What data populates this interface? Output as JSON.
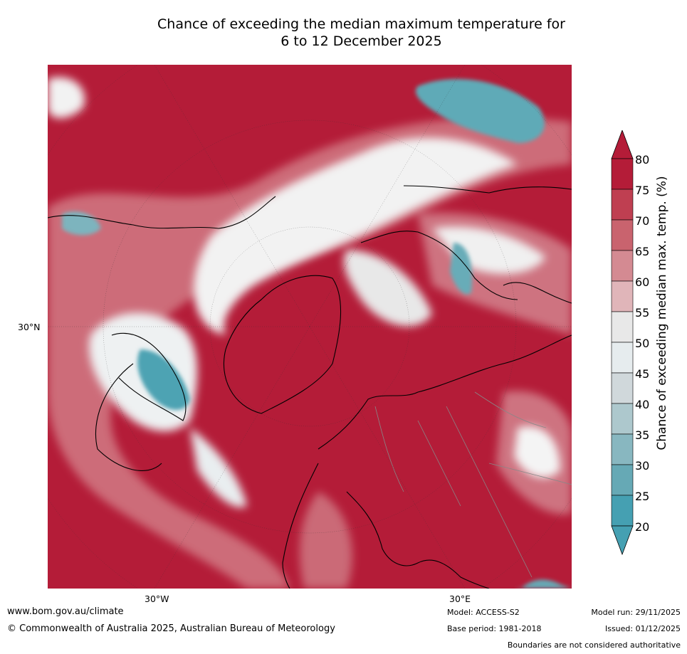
{
  "title_line1": "Chance of exceeding the median maximum temperature for",
  "title_line2": "6 to 12 December 2025",
  "map": {
    "lat_label": "30°N",
    "lon_labels": [
      "30°W",
      "30°E"
    ],
    "colors": {
      "ocean_high": "#b41c38",
      "coast": "#000000",
      "borders": "#888888"
    }
  },
  "colorbar": {
    "label": "Chance of exceeding median max. temp. (%)",
    "ticks": [
      "80",
      "75",
      "70",
      "65",
      "60",
      "55",
      "50",
      "45",
      "40",
      "35",
      "30",
      "25",
      "20"
    ],
    "colors": [
      "#b41c38",
      "#bf3f51",
      "#c9636e",
      "#d48a92",
      "#e0b5b9",
      "#e8e8e8",
      "#ffffff",
      "#e6ecee",
      "#d0d8db",
      "#adc8cd",
      "#88b7c0",
      "#66a9b5",
      "#45a0b2"
    ]
  },
  "footer": {
    "website": "www.bom.gov.au/climate",
    "copyright": "© Commonwealth of Australia 2025, Australian Bureau of Meteorology",
    "model": "Model: ACCESS-S2",
    "base_period": "Base period: 1981-2018",
    "model_run": "Model run: 29/11/2025",
    "issued": "Issued: 01/12/2025",
    "disclaimer": "Boundaries are not considered authoritative"
  }
}
